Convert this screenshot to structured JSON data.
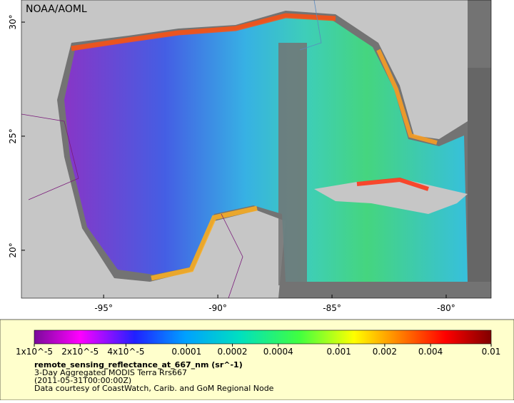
{
  "map": {
    "label": "NOAA/AOML",
    "xlim": [
      -98.6,
      -78.03
    ],
    "ylim": [
      17.9,
      30.97
    ],
    "xticks": [
      {
        "value": -95,
        "label": "-95°"
      },
      {
        "value": -90,
        "label": "-90°"
      },
      {
        "value": -85,
        "label": "-85°"
      },
      {
        "value": -80,
        "label": "-80°"
      }
    ],
    "yticks": [
      {
        "value": 20,
        "label": "20°"
      },
      {
        "value": 25,
        "label": "25°"
      },
      {
        "value": 30,
        "label": "30°"
      }
    ]
  },
  "colorbar": {
    "title": "remote_sensing_reflectance_at_667_nm (sr^-1)",
    "scale": "log",
    "lim": [
      1e-05,
      0.01
    ],
    "ticks": [
      {
        "value": 1e-05,
        "label": "1x10^-5"
      },
      {
        "value": 2e-05,
        "label": "2x10^-5"
      },
      {
        "value": 4e-05,
        "label": "4x10^-5"
      },
      0.0001,
      0.0002,
      0.0004,
      0.001,
      0.002,
      0.004,
      0.01
    ],
    "lines": [
      "3-Day Aggregated MODIS Terra Rrs667",
      "(2011-05-31T00:00:00Z)",
      "Data courtesy of CoastWatch, Carib. and GoM Regional Node"
    ]
  }
}
